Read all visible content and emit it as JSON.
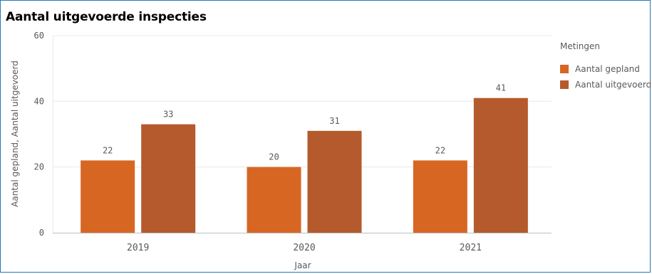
{
  "title": "Aantal uitgevoerde inspecties",
  "colors": {
    "planned": "#d76623",
    "executed": "#b55a2c",
    "grid": "#e8e8e8",
    "frame": "#2a78b4"
  },
  "legend": {
    "title": "Metingen",
    "items": [
      {
        "label": "Aantal gepland",
        "color": "#d76623"
      },
      {
        "label": "Aantal uitgevoerd",
        "color": "#b55a2c"
      }
    ]
  },
  "chart_data": {
    "type": "bar",
    "categories": [
      "2019",
      "2020",
      "2021"
    ],
    "series": [
      {
        "name": "Aantal gepland",
        "values": [
          22,
          20,
          22
        ]
      },
      {
        "name": "Aantal uitgevoerd",
        "values": [
          33,
          31,
          41
        ]
      }
    ],
    "xlabel": "Jaar",
    "ylabel": "Aantal gepland, Aantal uitgevoerd",
    "ylim": [
      0,
      60
    ],
    "yticks": [
      0,
      20,
      40,
      60
    ],
    "grid": true,
    "legend_position": "right"
  }
}
